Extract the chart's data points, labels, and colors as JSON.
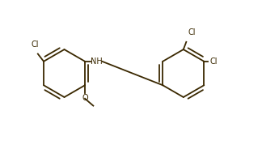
{
  "bg_color": "#ffffff",
  "bond_color": "#3a2800",
  "text_color": "#3a2800",
  "lw": 1.3,
  "fs": 7.0,
  "fig_w": 3.24,
  "fig_h": 1.84,
  "dpi": 100,
  "xlim": [
    -0.5,
    10.5
  ],
  "ylim": [
    -0.3,
    5.8
  ]
}
